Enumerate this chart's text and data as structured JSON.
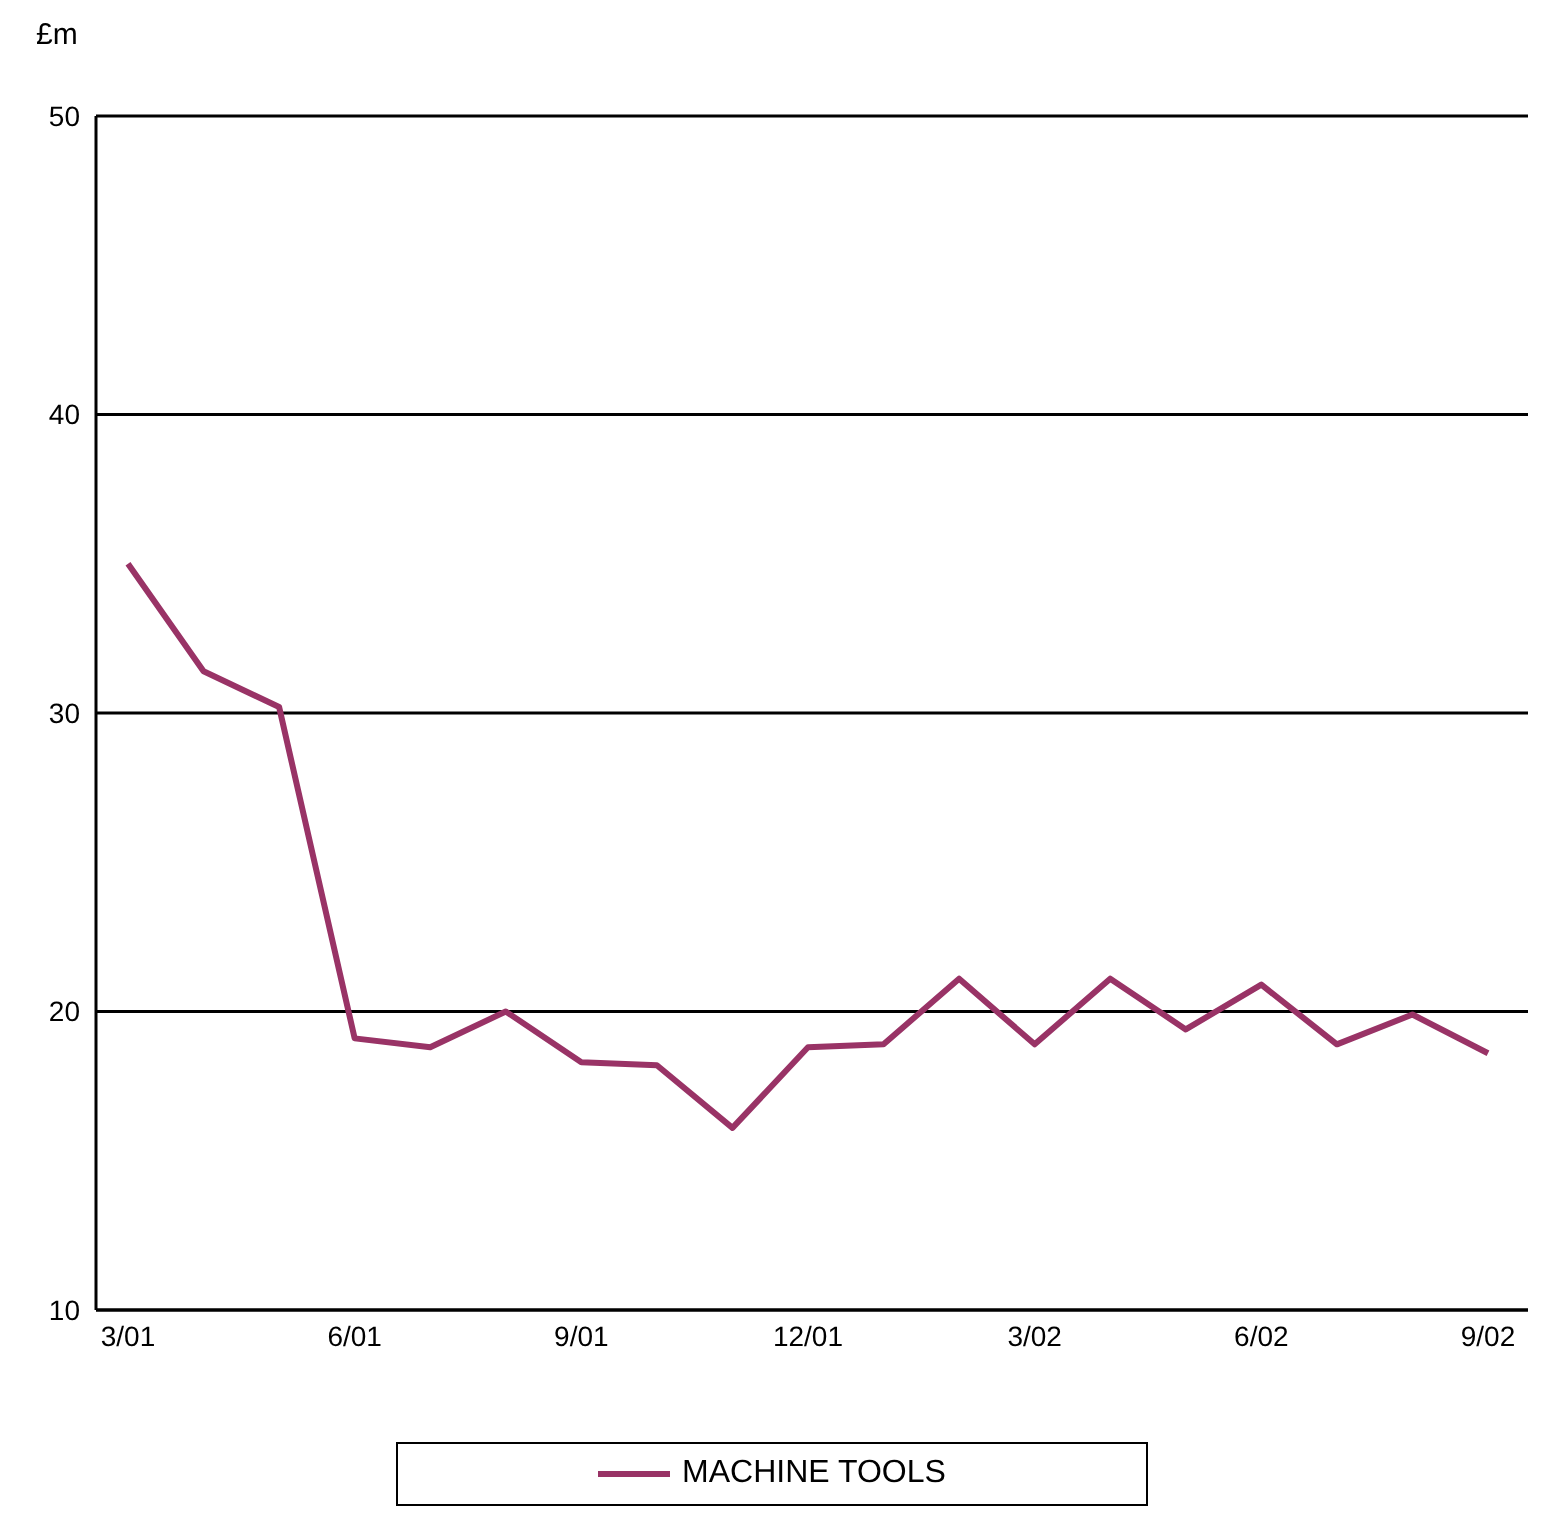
{
  "chart_data": {
    "type": "line",
    "ylabel": "£m",
    "categories": [
      "3/01",
      null,
      null,
      "6/01",
      null,
      null,
      "9/01",
      null,
      null,
      "12/01",
      null,
      null,
      "3/02",
      null,
      null,
      "6/02",
      null,
      null,
      "9/02"
    ],
    "series": [
      {
        "name": "MACHINE TOOLS",
        "color": "#993366",
        "values": [
          35.0,
          31.4,
          30.2,
          19.1,
          18.8,
          20.0,
          18.3,
          18.2,
          16.1,
          18.8,
          18.9,
          21.1,
          18.9,
          21.1,
          19.4,
          20.9,
          18.9,
          19.9,
          18.6
        ]
      }
    ],
    "ylim": [
      10,
      50
    ],
    "yticks": [
      10,
      20,
      30,
      40,
      50
    ],
    "grid": "y",
    "legend": "bottom",
    "marker": "none",
    "line_style": "solid"
  }
}
